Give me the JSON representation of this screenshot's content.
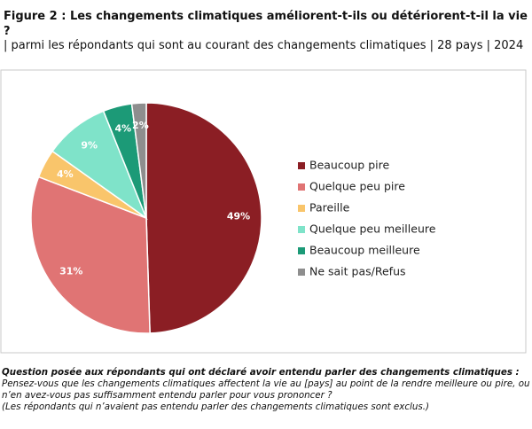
{
  "chart_data": {
    "type": "pie",
    "title": "Figure 2 : Les changements climatiques améliorent-t-ils ou détériorent-t-il la vie ?",
    "subtitle": "| parmi les répondants qui sont au courant des changements climatiques | 28 pays | 2024",
    "categories": [
      "Beaucoup pire",
      "Quelque peu pire",
      "Pareille",
      "Quelque peu meilleure",
      "Beaucoup meilleure",
      "Ne sait pas/Refus"
    ],
    "values": [
      49,
      31,
      4,
      9,
      4,
      2
    ],
    "value_labels": [
      "49%",
      "31%",
      "4%",
      "9%",
      "4%",
      "2%"
    ],
    "colors": [
      "#8b1e24",
      "#e07474",
      "#f9c56b",
      "#7fe3c9",
      "#1c9a77",
      "#8e8e8e"
    ],
    "legend": "right",
    "footnote_question": "Question posée aux répondants qui ont déclaré avoir entendu parler des changements climatiques :",
    "footnote": [
      "Pensez-vous que les changements climatiques affectent la vie au [pays] au point de la rendre meilleure ou pire, ou n’en avez-vous pas suffisamment entendu parler pour vous prononcer ?",
      "(Les répondants qui n’avaient pas entendu parler des changements climatiques sont exclus.)"
    ]
  }
}
